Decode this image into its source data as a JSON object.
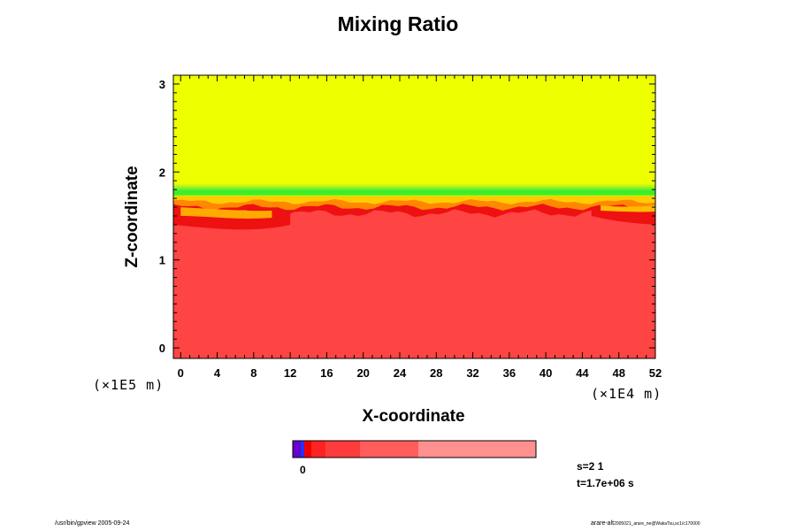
{
  "chart_data": {
    "type": "heatmap",
    "title": "Mixing Ratio",
    "xlabel": "X-coordinate",
    "ylabel": "Z-coordinate",
    "x_unit": "(×1E4 m)",
    "y_unit": "(×1E5 m)",
    "xlim": [
      -0.8,
      52
    ],
    "ylim": [
      -0.12,
      3.1
    ],
    "x_ticks": [
      0,
      4,
      8,
      12,
      16,
      20,
      24,
      28,
      32,
      36,
      40,
      44,
      48,
      52
    ],
    "y_ticks": [
      0,
      1,
      2,
      3
    ],
    "x_tick_labels": [
      "0",
      "4",
      "8",
      "12",
      "16",
      "20",
      "24",
      "28",
      "32",
      "36",
      "40",
      "44",
      "48",
      "52"
    ],
    "y_tick_labels": [
      "0",
      "1",
      "2",
      "3"
    ],
    "grid": false,
    "colors": {
      "upper": "#eeff00",
      "transition": "#33ee33",
      "lower": "#ff4444",
      "band": "#ee1111"
    },
    "layers": [
      {
        "name": "upper-layer",
        "z_from": 1.85,
        "z_to": 3.1,
        "color": "#eeff00"
      },
      {
        "name": "transition-layer",
        "z_from": 1.72,
        "z_to": 1.85,
        "color": "#33ee33"
      },
      {
        "name": "lower-layer",
        "z_from": -0.12,
        "z_to": 1.6,
        "color": "#ff4444"
      }
    ],
    "colorbar": {
      "zero_label": "0",
      "segments": [
        "#6600cc",
        "#2233ff",
        "#ee0000",
        "#ff2222",
        "#ff3c3c",
        "#ff5c5c",
        "#ff7777",
        "#ff9090"
      ]
    },
    "annotations": {
      "s": "s=2 1",
      "t": "t=1.7e+06 s"
    }
  },
  "footer": {
    "left": "/usr/bin/gpview 2005-09-24",
    "right_main": "arare-alt",
    "right_small": "2005021_arare_ne@WakaTsu,sc1/c170000"
  }
}
